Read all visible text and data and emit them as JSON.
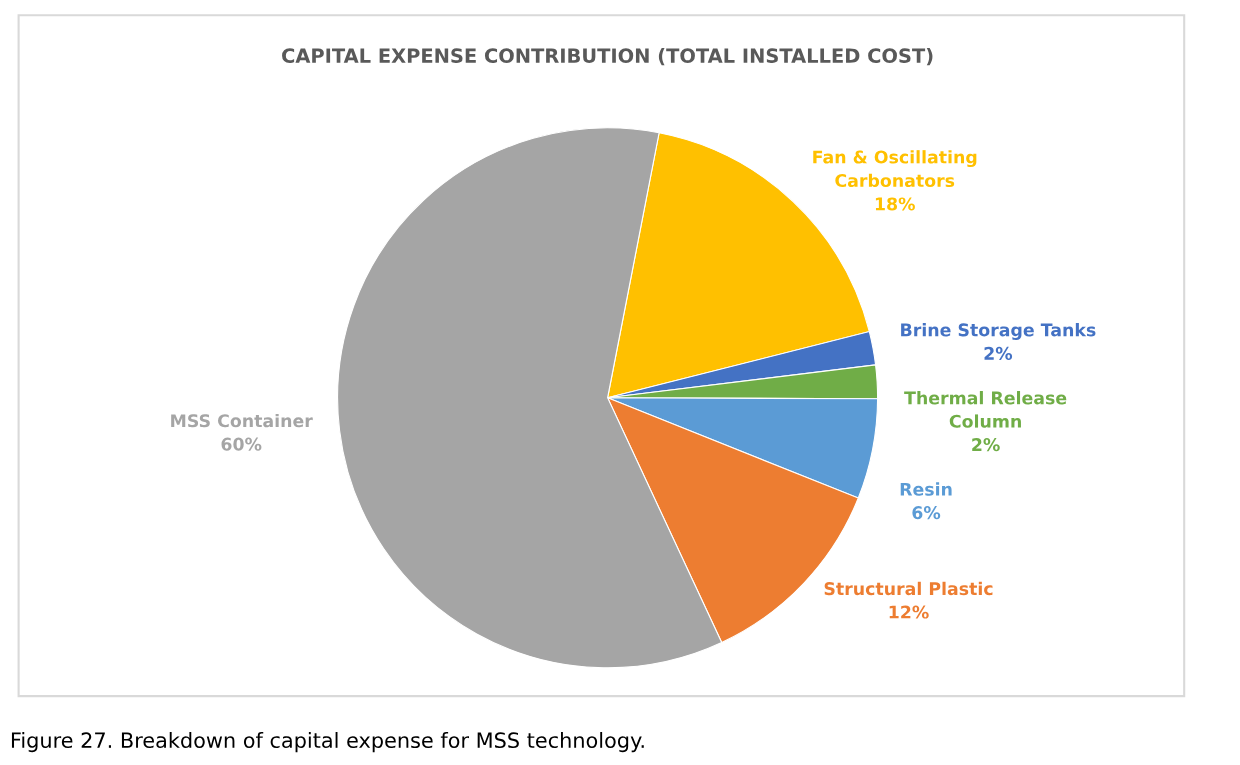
{
  "chart_data": {
    "type": "pie",
    "title": "CAPITAL EXPENSE CONTRIBUTION (TOTAL INSTALLED COST)",
    "categories": [
      "Fan & Oscillating\nCarbonators",
      "Brine Storage Tanks",
      "Thermal Release\nColumn",
      "Resin",
      "Structural Plastic",
      "MSS Container"
    ],
    "values": [
      18,
      2,
      2,
      6,
      12,
      60
    ],
    "value_labels": [
      "18%",
      "2%",
      "2%",
      "6%",
      "12%",
      "60%"
    ],
    "colors": [
      "#ffc000",
      "#4472c4",
      "#70ad47",
      "#5b9bd5",
      "#ed7d31",
      "#a5a5a5"
    ],
    "legend": false,
    "annotations": [
      "Figure 27. Breakdown of capital expense for MSS technology."
    ]
  }
}
